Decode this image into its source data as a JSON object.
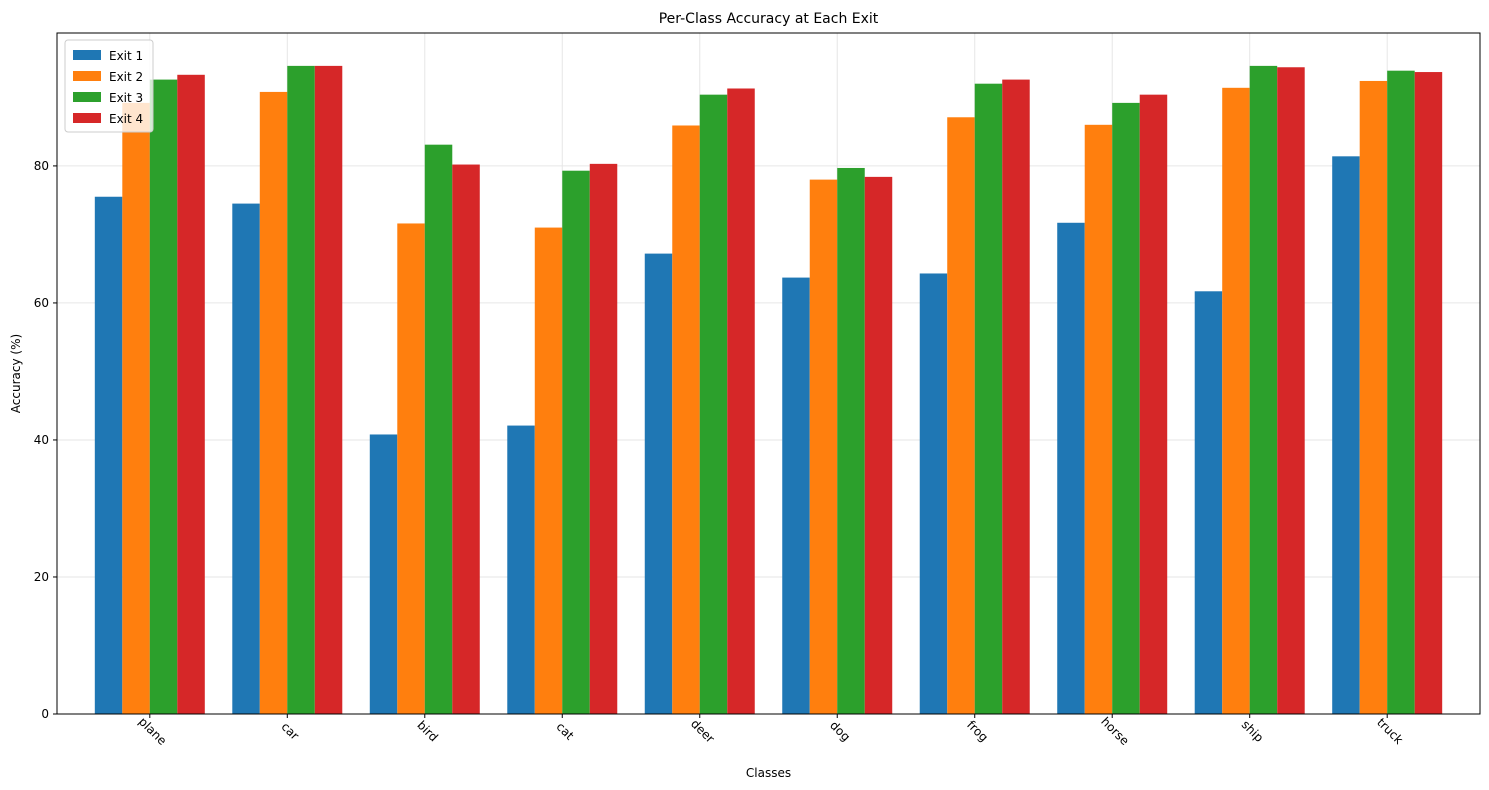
{
  "chart_data": {
    "type": "bar",
    "title": "Per-Class Accuracy at Each Exit",
    "xlabel": "Classes",
    "ylabel": "Accuracy (%)",
    "categories": [
      "plane",
      "car",
      "bird",
      "cat",
      "deer",
      "dog",
      "frog",
      "horse",
      "ship",
      "truck"
    ],
    "series": [
      {
        "name": "Exit 1",
        "color": "#1f77b4",
        "values": [
          75.5,
          74.5,
          40.8,
          42.1,
          67.2,
          63.7,
          64.3,
          71.7,
          61.7,
          81.4
        ]
      },
      {
        "name": "Exit 2",
        "color": "#ff7f0e",
        "values": [
          89.2,
          90.8,
          71.6,
          71.0,
          85.9,
          78.0,
          87.1,
          86.0,
          91.4,
          92.4
        ]
      },
      {
        "name": "Exit 3",
        "color": "#2ca02c",
        "values": [
          92.6,
          94.6,
          83.1,
          79.3,
          90.4,
          79.7,
          92.0,
          89.2,
          94.6,
          93.9
        ]
      },
      {
        "name": "Exit 4",
        "color": "#d62728",
        "values": [
          93.3,
          94.6,
          80.2,
          80.3,
          91.3,
          78.4,
          92.6,
          90.4,
          94.4,
          93.7
        ]
      }
    ],
    "ylim": [
      0,
      99.4
    ],
    "yticks": [
      0,
      20,
      40,
      60,
      80
    ],
    "grid": true,
    "legend_position": "top-left"
  }
}
